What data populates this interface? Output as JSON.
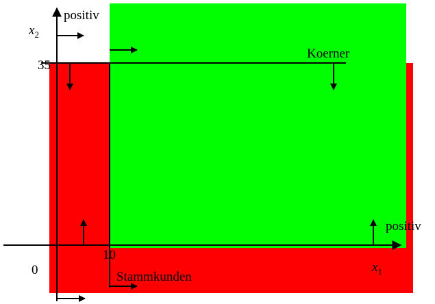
{
  "y_axis": {
    "positive_label": "positiv",
    "label": {
      "var": "x",
      "sub": "2"
    },
    "tick": "35"
  },
  "x_axis": {
    "positive_label": "positiv",
    "label": {
      "var": "x",
      "sub": "1"
    },
    "tick": "10",
    "origin": "0"
  },
  "constraints": {
    "horizontal": "Koerner",
    "vertical": "Stammkunden"
  }
}
